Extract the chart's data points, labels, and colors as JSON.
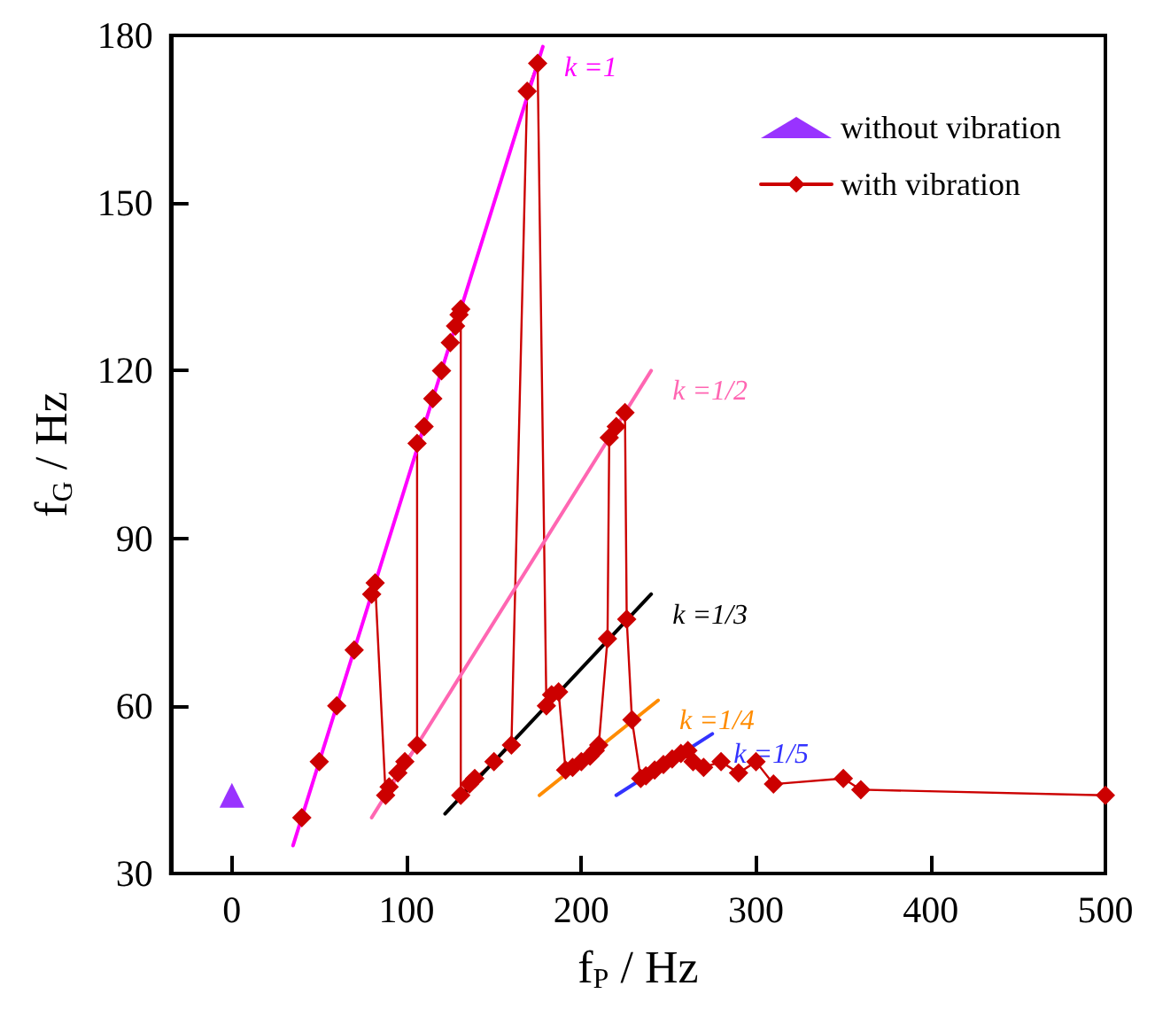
{
  "chart_data": {
    "type": "line",
    "xlabel": "f$_{P}$ / Hz",
    "ylabel": "f$_{G}$ / Hz",
    "xlim": [
      -35,
      500
    ],
    "ylim": [
      30,
      180
    ],
    "xticks": [
      0,
      100,
      200,
      300,
      400,
      500
    ],
    "yticks": [
      30,
      60,
      90,
      120,
      150,
      180
    ],
    "grid": false,
    "legend": "top right",
    "series": [
      {
        "name": "without vibration",
        "type": "scatter",
        "marker": "triangle",
        "color": "#7f00ff",
        "x": [
          0
        ],
        "values": [
          44
        ]
      },
      {
        "name": "with vibration",
        "marker": "diamond",
        "color": "#cc0000",
        "x": [
          40,
          50,
          60,
          70,
          80,
          82,
          88,
          90,
          95,
          99,
          106,
          106,
          110,
          115,
          120,
          125,
          128,
          130,
          131,
          131,
          136,
          139,
          150,
          160,
          169,
          175,
          180,
          183,
          187,
          191,
          195,
          200,
          205,
          208,
          210,
          215,
          216,
          220,
          225,
          226,
          229,
          234,
          237,
          242,
          247,
          252,
          257,
          261,
          264,
          270,
          280,
          290,
          300,
          310,
          350,
          360,
          500
        ],
        "values": [
          40,
          50,
          60,
          70,
          80,
          82,
          44,
          45.5,
          48,
          50,
          53,
          107,
          110,
          115,
          120,
          125,
          128,
          130,
          131,
          44,
          46,
          47,
          50,
          53,
          170,
          175,
          60,
          62,
          62.5,
          48.5,
          49,
          50,
          51,
          52,
          53,
          72,
          108,
          110,
          112.5,
          75.5,
          57.5,
          47,
          47.5,
          48.5,
          49.5,
          50.5,
          51.5,
          52,
          50,
          49,
          50,
          48,
          50,
          46,
          47,
          45,
          44
        ]
      },
      {
        "name": "k =1",
        "marker": "none",
        "color": "#ff00ff",
        "x": [
          35,
          178
        ],
        "values": [
          35,
          178
        ]
      },
      {
        "name": "k =1/2",
        "marker": "none",
        "color": "#ff66b2",
        "x": [
          80,
          240
        ],
        "values": [
          40,
          120
        ]
      },
      {
        "name": "k =1/3",
        "marker": "none",
        "color": "#000000",
        "x": [
          122,
          240
        ],
        "values": [
          40.7,
          80
        ]
      },
      {
        "name": "k =1/4",
        "marker": "none",
        "color": "#ff8c00",
        "x": [
          176,
          244
        ],
        "values": [
          44,
          61
        ]
      },
      {
        "name": "k =1/5",
        "marker": "none",
        "color": "#3333ff",
        "x": [
          220,
          275
        ],
        "values": [
          44,
          55
        ]
      }
    ]
  }
}
